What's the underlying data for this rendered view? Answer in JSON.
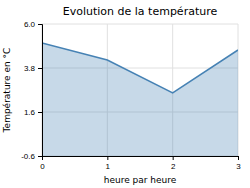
{
  "chart_data": {
    "type": "area",
    "title": "Evolution de la température",
    "xlabel": "heure par heure",
    "ylabel": "Température en °C",
    "x": [
      0,
      1,
      2,
      3
    ],
    "values": [
      5.05,
      4.2,
      2.55,
      4.7
    ],
    "xlim": [
      0,
      3
    ],
    "ylim": [
      -0.6,
      6.0
    ],
    "xticks": [
      0,
      1,
      2,
      3
    ],
    "yticks": [
      -0.6,
      1.6,
      3.8,
      {
        "value": 6.0,
        "label": "6.0"
      }
    ],
    "grid": true
  }
}
